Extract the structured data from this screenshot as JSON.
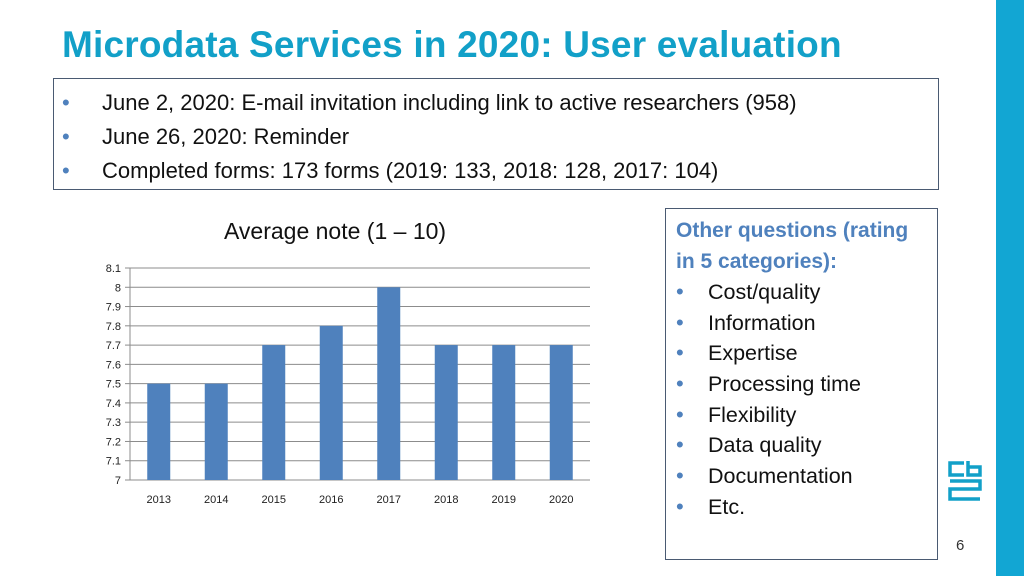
{
  "slide": {
    "title": "Microdata Services in 2020: User evaluation",
    "page_number": "6"
  },
  "intro": {
    "items": [
      "June 2,  2020: E-mail invitation including link to active researchers (958)",
      "June 26, 2020: Reminder",
      "Completed forms: 173 forms (2019: 133, 2018: 128, 2017: 104)"
    ]
  },
  "other_questions": {
    "heading": "Other questions (rating in 5 categories):",
    "items": [
      "Cost/quality",
      "Information",
      "Expertise",
      "Processing time",
      "Flexibility",
      "Data quality",
      "Documentation",
      "Etc."
    ]
  },
  "colors": {
    "accent": "#12a0c8",
    "sidebar": "#12a6d3",
    "bar": "#4f81bd",
    "bullet": "#4f81bd"
  },
  "chart_data": {
    "type": "bar",
    "title": "Average note (1 – 10)",
    "categories": [
      "2013",
      "2014",
      "2015",
      "2016",
      "2017",
      "2018",
      "2019",
      "2020"
    ],
    "values": [
      7.5,
      7.5,
      7.7,
      7.8,
      8.0,
      7.7,
      7.7,
      7.7
    ],
    "yticks": [
      "7",
      "7.1",
      "7.2",
      "7.3",
      "7.4",
      "7.5",
      "7.6",
      "7.7",
      "7.8",
      "7.9",
      "8",
      "8.1"
    ],
    "ylim": [
      7,
      8.1
    ],
    "xlabel": "",
    "ylabel": "",
    "grid": true,
    "legend": false
  }
}
